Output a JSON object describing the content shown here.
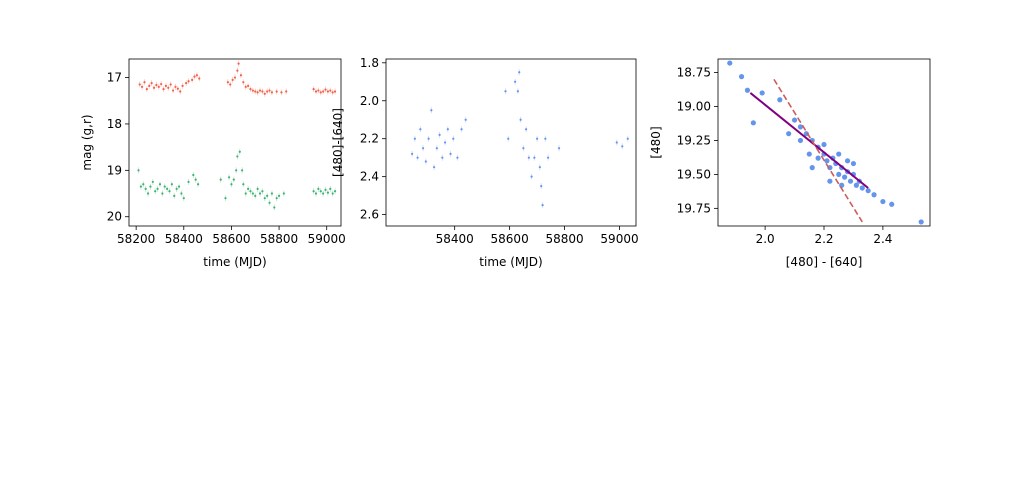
{
  "chart_data": [
    {
      "type": "scatter",
      "xlabel": "time (MJD)",
      "ylabel": "mag (g,r)",
      "xlim": [
        58170,
        59060
      ],
      "ylim": [
        20.2,
        16.6
      ],
      "y_inverted": true,
      "xticks": [
        "58200",
        "58400",
        "58600",
        "58800",
        "59000"
      ],
      "yticks": [
        "17",
        "18",
        "19",
        "20"
      ],
      "series": [
        {
          "color": "#f0604a",
          "marker": "small dot with error bar",
          "points": [
            [
              58215,
              17.15
            ],
            [
              58225,
              17.2
            ],
            [
              58235,
              17.1
            ],
            [
              58245,
              17.25
            ],
            [
              58255,
              17.18
            ],
            [
              58265,
              17.12
            ],
            [
              58275,
              17.22
            ],
            [
              58285,
              17.16
            ],
            [
              58295,
              17.2
            ],
            [
              58305,
              17.14
            ],
            [
              58315,
              17.25
            ],
            [
              58325,
              17.18
            ],
            [
              58335,
              17.22
            ],
            [
              58345,
              17.15
            ],
            [
              58355,
              17.28
            ],
            [
              58365,
              17.2
            ],
            [
              58375,
              17.24
            ],
            [
              58385,
              17.3
            ],
            [
              58395,
              17.18
            ],
            [
              58410,
              17.12
            ],
            [
              58420,
              17.08
            ],
            [
              58435,
              17.05
            ],
            [
              58445,
              16.98
            ],
            [
              58455,
              16.95
            ],
            [
              58465,
              17.02
            ],
            [
              58585,
              17.1
            ],
            [
              58595,
              17.15
            ],
            [
              58605,
              17.05
            ],
            [
              58615,
              17.0
            ],
            [
              58625,
              16.85
            ],
            [
              58630,
              16.7
            ],
            [
              58640,
              16.95
            ],
            [
              58650,
              17.1
            ],
            [
              58660,
              17.2
            ],
            [
              58670,
              17.18
            ],
            [
              58680,
              17.25
            ],
            [
              58690,
              17.28
            ],
            [
              58700,
              17.3
            ],
            [
              58710,
              17.32
            ],
            [
              58720,
              17.28
            ],
            [
              58730,
              17.3
            ],
            [
              58740,
              17.35
            ],
            [
              58750,
              17.3
            ],
            [
              58760,
              17.28
            ],
            [
              58770,
              17.32
            ],
            [
              58790,
              17.3
            ],
            [
              58810,
              17.32
            ],
            [
              58830,
              17.3
            ],
            [
              58945,
              17.25
            ],
            [
              58955,
              17.3
            ],
            [
              58965,
              17.28
            ],
            [
              58975,
              17.32
            ],
            [
              58985,
              17.3
            ],
            [
              58995,
              17.26
            ],
            [
              59005,
              17.3
            ],
            [
              59015,
              17.28
            ],
            [
              59025,
              17.32
            ],
            [
              59035,
              17.3
            ]
          ]
        },
        {
          "color": "#3cb371",
          "marker": "small dot with error bar",
          "points": [
            [
              58210,
              19.0
            ],
            [
              58220,
              19.35
            ],
            [
              58230,
              19.3
            ],
            [
              58240,
              19.4
            ],
            [
              58250,
              19.5
            ],
            [
              58260,
              19.35
            ],
            [
              58270,
              19.25
            ],
            [
              58280,
              19.45
            ],
            [
              58290,
              19.4
            ],
            [
              58300,
              19.3
            ],
            [
              58310,
              19.5
            ],
            [
              58320,
              19.35
            ],
            [
              58330,
              19.4
            ],
            [
              58340,
              19.45
            ],
            [
              58350,
              19.3
            ],
            [
              58360,
              19.55
            ],
            [
              58370,
              19.4
            ],
            [
              58380,
              19.35
            ],
            [
              58390,
              19.5
            ],
            [
              58400,
              19.6
            ],
            [
              58420,
              19.25
            ],
            [
              58440,
              19.1
            ],
            [
              58450,
              19.2
            ],
            [
              58460,
              19.3
            ],
            [
              58555,
              19.2
            ],
            [
              58575,
              19.6
            ],
            [
              58590,
              19.15
            ],
            [
              58600,
              19.3
            ],
            [
              58610,
              19.2
            ],
            [
              58620,
              19.0
            ],
            [
              58625,
              18.7
            ],
            [
              58635,
              18.6
            ],
            [
              58645,
              19.0
            ],
            [
              58650,
              19.3
            ],
            [
              58660,
              19.5
            ],
            [
              58670,
              19.4
            ],
            [
              58680,
              19.45
            ],
            [
              58690,
              19.5
            ],
            [
              58700,
              19.55
            ],
            [
              58710,
              19.4
            ],
            [
              58720,
              19.5
            ],
            [
              58730,
              19.45
            ],
            [
              58740,
              19.6
            ],
            [
              58750,
              19.55
            ],
            [
              58760,
              19.7
            ],
            [
              58770,
              19.5
            ],
            [
              58780,
              19.8
            ],
            [
              58790,
              19.6
            ],
            [
              58800,
              19.55
            ],
            [
              58820,
              19.5
            ],
            [
              58945,
              19.45
            ],
            [
              58955,
              19.5
            ],
            [
              58965,
              19.4
            ],
            [
              58975,
              19.45
            ],
            [
              58985,
              19.5
            ],
            [
              58995,
              19.42
            ],
            [
              59005,
              19.48
            ],
            [
              59015,
              19.4
            ],
            [
              59025,
              19.5
            ],
            [
              59035,
              19.45
            ]
          ]
        }
      ]
    },
    {
      "type": "scatter",
      "xlabel": "time (MJD)",
      "ylabel": "[480]-[640]",
      "xlim": [
        58150,
        59060
      ],
      "ylim": [
        2.66,
        1.78
      ],
      "y_inverted": true,
      "xticks": [
        "58400",
        "58600",
        "58800",
        "59000"
      ],
      "yticks": [
        "1.8",
        "2.0",
        "2.2",
        "2.4",
        "2.6"
      ],
      "series": [
        {
          "color": "#6495ed",
          "marker": "small dot with error bar",
          "points": [
            [
              58245,
              2.28
            ],
            [
              58255,
              2.2
            ],
            [
              58265,
              2.3
            ],
            [
              58275,
              2.15
            ],
            [
              58285,
              2.25
            ],
            [
              58295,
              2.32
            ],
            [
              58305,
              2.2
            ],
            [
              58315,
              2.05
            ],
            [
              58325,
              2.35
            ],
            [
              58335,
              2.25
            ],
            [
              58345,
              2.18
            ],
            [
              58355,
              2.3
            ],
            [
              58365,
              2.22
            ],
            [
              58375,
              2.15
            ],
            [
              58385,
              2.28
            ],
            [
              58395,
              2.2
            ],
            [
              58410,
              2.3
            ],
            [
              58425,
              2.15
            ],
            [
              58440,
              2.1
            ],
            [
              58585,
              1.95
            ],
            [
              58595,
              2.2
            ],
            [
              58620,
              1.9
            ],
            [
              58630,
              1.95
            ],
            [
              58635,
              1.85
            ],
            [
              58640,
              2.1
            ],
            [
              58650,
              2.25
            ],
            [
              58660,
              2.15
            ],
            [
              58670,
              2.3
            ],
            [
              58680,
              2.4
            ],
            [
              58690,
              2.3
            ],
            [
              58700,
              2.2
            ],
            [
              58710,
              2.35
            ],
            [
              58715,
              2.45
            ],
            [
              58720,
              2.55
            ],
            [
              58730,
              2.2
            ],
            [
              58740,
              2.3
            ],
            [
              58780,
              2.25
            ],
            [
              58990,
              2.22
            ],
            [
              59010,
              2.24
            ],
            [
              59030,
              2.2
            ]
          ]
        }
      ]
    },
    {
      "type": "scatter",
      "xlabel": "[480] - [640]",
      "ylabel": "[480]",
      "xlim": [
        1.84,
        2.56
      ],
      "ylim": [
        19.88,
        18.65
      ],
      "y_inverted": true,
      "xticks": [
        "2.0",
        "2.2",
        "2.4"
      ],
      "yticks": [
        "18.75",
        "19.00",
        "19.25",
        "19.50",
        "19.75"
      ],
      "series": [
        {
          "color": "#6495ed",
          "marker": "dot",
          "points": [
            [
              1.88,
              18.68
            ],
            [
              1.92,
              18.78
            ],
            [
              1.94,
              18.88
            ],
            [
              1.96,
              19.12
            ],
            [
              1.99,
              18.9
            ],
            [
              2.05,
              18.95
            ],
            [
              2.08,
              19.2
            ],
            [
              2.1,
              19.1
            ],
            [
              2.12,
              19.15
            ],
            [
              2.14,
              19.2
            ],
            [
              2.16,
              19.25
            ],
            [
              2.18,
              19.3
            ],
            [
              2.2,
              19.35
            ],
            [
              2.21,
              19.4
            ],
            [
              2.22,
              19.45
            ],
            [
              2.23,
              19.38
            ],
            [
              2.24,
              19.42
            ],
            [
              2.25,
              19.5
            ],
            [
              2.26,
              19.45
            ],
            [
              2.27,
              19.52
            ],
            [
              2.28,
              19.48
            ],
            [
              2.29,
              19.55
            ],
            [
              2.3,
              19.5
            ],
            [
              2.31,
              19.58
            ],
            [
              2.32,
              19.55
            ],
            [
              2.33,
              19.6
            ],
            [
              2.35,
              19.62
            ],
            [
              2.37,
              19.65
            ],
            [
              2.4,
              19.7
            ],
            [
              2.2,
              19.28
            ],
            [
              2.18,
              19.38
            ],
            [
              2.16,
              19.45
            ],
            [
              2.25,
              19.35
            ],
            [
              2.28,
              19.4
            ],
            [
              2.3,
              19.42
            ],
            [
              2.15,
              19.35
            ],
            [
              2.12,
              19.25
            ],
            [
              2.22,
              19.55
            ],
            [
              2.26,
              19.58
            ],
            [
              2.53,
              19.85
            ],
            [
              2.43,
              19.72
            ]
          ]
        }
      ],
      "lines": [
        {
          "style": "solid",
          "color": "#800080",
          "points": [
            [
              1.95,
              18.9
            ],
            [
              2.35,
              19.6
            ]
          ]
        },
        {
          "style": "dashed",
          "color": "#cd5c5c",
          "points": [
            [
              2.03,
              18.8
            ],
            [
              2.33,
              19.85
            ]
          ]
        }
      ]
    }
  ]
}
